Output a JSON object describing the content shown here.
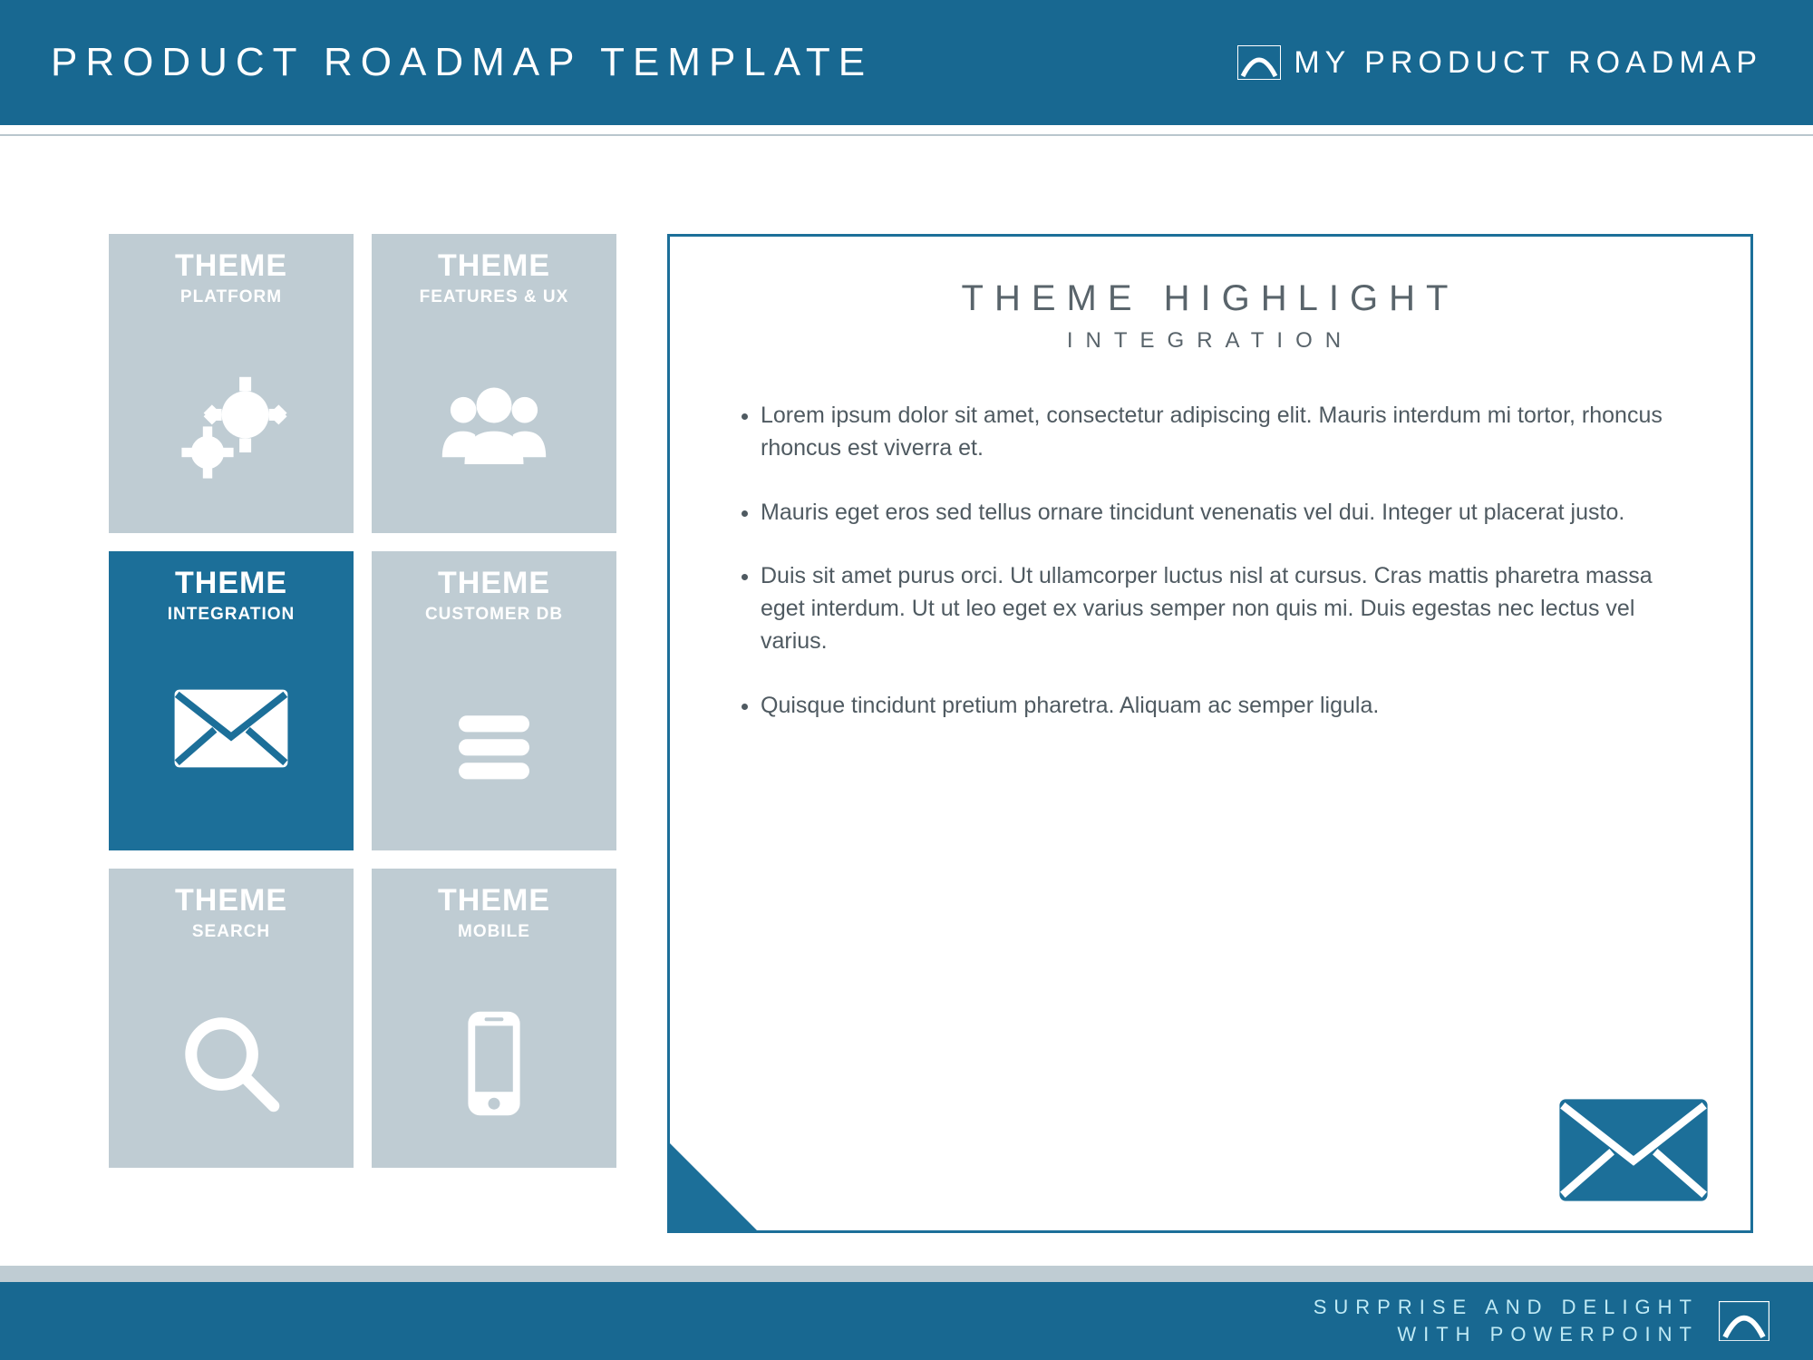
{
  "colors": {
    "primary": "#186891",
    "primary_alt": "#1c6f99",
    "muted_tile": "#bfccd3",
    "text_body": "#4f5a61",
    "text_heading": "#59646b",
    "white": "#ffffff"
  },
  "header": {
    "title": "PRODUCT  ROADMAP TEMPLATE",
    "brand": "MY PRODUCT  ROADMAP"
  },
  "tiles": [
    {
      "title": "THEME",
      "subtitle": "PLATFORM",
      "icon": "gears",
      "active": false
    },
    {
      "title": "THEME",
      "subtitle": "FEATURES & UX",
      "icon": "people",
      "active": false
    },
    {
      "title": "THEME",
      "subtitle": "INTEGRATION",
      "icon": "mail",
      "active": true
    },
    {
      "title": "THEME",
      "subtitle": "CUSTOMER DB",
      "icon": "list",
      "active": false
    },
    {
      "title": "THEME",
      "subtitle": "SEARCH",
      "icon": "search",
      "active": false
    },
    {
      "title": "THEME",
      "subtitle": "MOBILE",
      "icon": "phone",
      "active": false
    }
  ],
  "highlight": {
    "title": "THEME HIGHLIGHT",
    "subtitle": "INTEGRATION",
    "bullets": [
      "Lorem ipsum dolor sit amet, consectetur adipiscing elit. Mauris interdum mi tortor, rhoncus rhoncus est viverra et.",
      "Mauris eget eros sed tellus ornare tincidunt venenatis vel dui. Integer ut placerat justo.",
      "Duis sit amet purus orci. Ut ullamcorper luctus nisl at cursus. Cras mattis pharetra massa eget interdum. Ut ut leo eget ex varius semper non quis mi. Duis egestas nec lectus vel varius.",
      "Quisque tincidunt pretium pharetra. Aliquam ac semper ligula."
    ],
    "corner_icon": "mail"
  },
  "footer": {
    "line1": "SURPRISE AND DELIGHT",
    "line2": "WITH POWERPOINT"
  }
}
